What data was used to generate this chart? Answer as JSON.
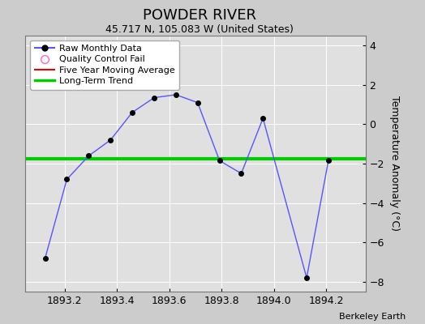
{
  "title": "POWDER RIVER",
  "subtitle": "45.717 N, 105.083 W (United States)",
  "credit": "Berkeley Earth",
  "x_data": [
    1893.125,
    1893.208,
    1893.292,
    1893.375,
    1893.458,
    1893.542,
    1893.625,
    1893.708,
    1893.792,
    1893.875,
    1893.958,
    1894.125,
    1894.208
  ],
  "y_data": [
    -6.8,
    -2.8,
    -1.6,
    -0.8,
    0.6,
    1.35,
    1.5,
    1.1,
    -1.85,
    -2.5,
    0.3,
    -7.8,
    -1.85
  ],
  "long_term_trend_y": -1.75,
  "line_color": "#5555ff",
  "marker_color": "#000000",
  "trend_color": "#00cc00",
  "five_year_color": "#ee0000",
  "bg_color": "#cccccc",
  "plot_bg_color": "#e0e0e0",
  "xlim": [
    1893.05,
    1894.35
  ],
  "ylim": [
    -8.5,
    4.5
  ],
  "xticks": [
    1893.2,
    1893.4,
    1893.6,
    1893.8,
    1894.0,
    1894.2
  ],
  "yticks": [
    -8,
    -6,
    -4,
    -2,
    0,
    2,
    4
  ],
  "ylabel": "Temperature Anomaly (°C)",
  "legend_labels": [
    "Raw Monthly Data",
    "Quality Control Fail",
    "Five Year Moving Average",
    "Long-Term Trend"
  ],
  "grid_color": "#ffffff",
  "title_fontsize": 13,
  "subtitle_fontsize": 9,
  "credit_fontsize": 8
}
